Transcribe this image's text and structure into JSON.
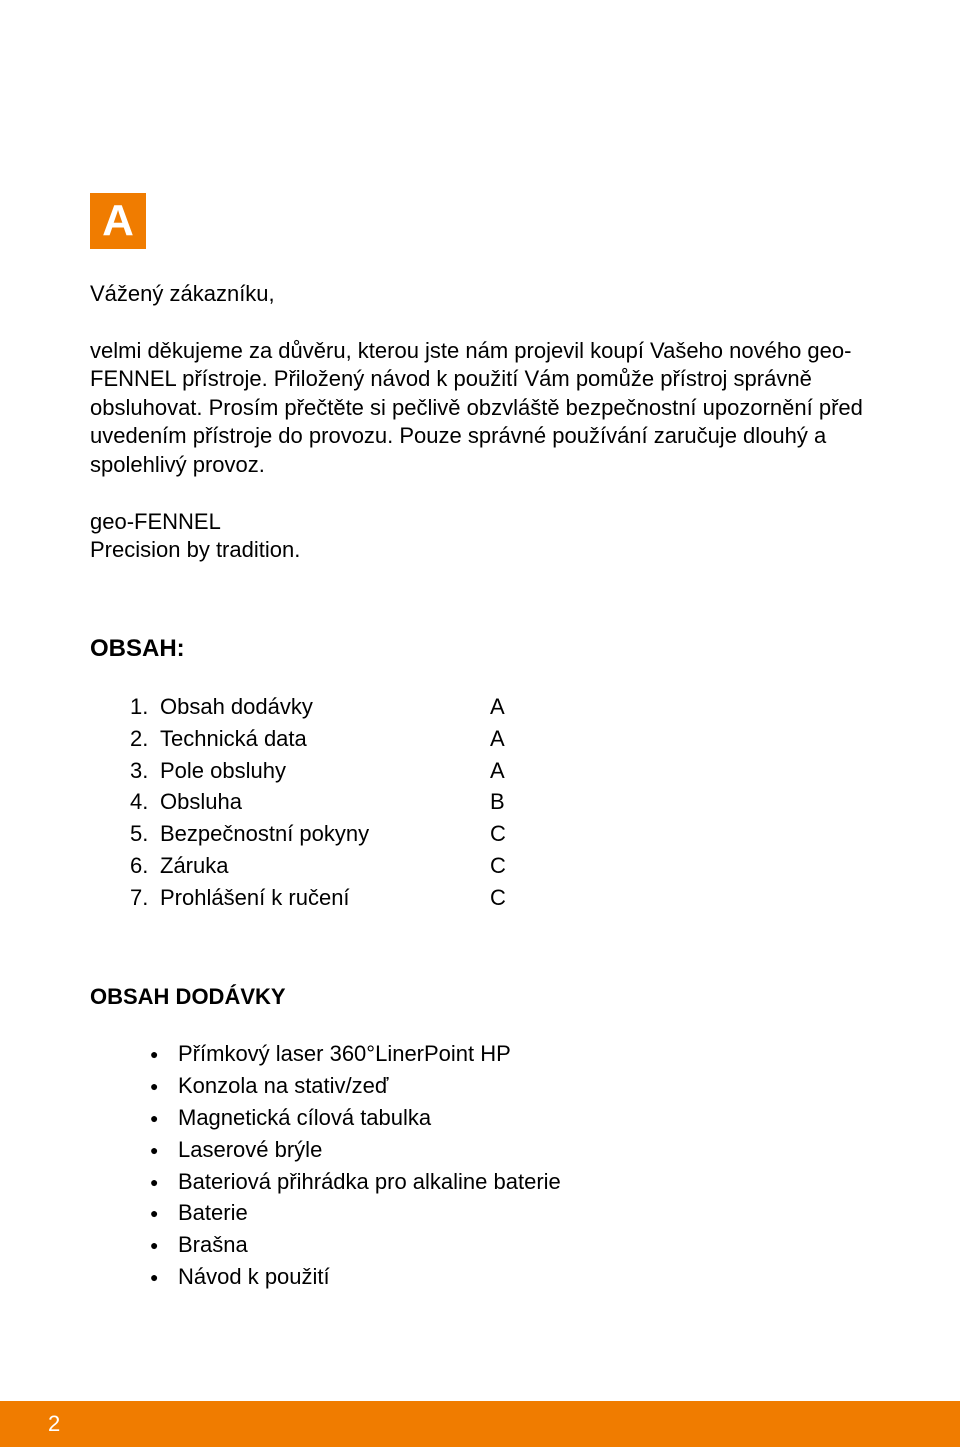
{
  "badge_letter": "A",
  "greeting": "Vážený zákazníku,",
  "intro": "velmi děkujeme za důvěru, kterou jste nám projevil koupí Vašeho nového geo-FENNEL přístroje. Přiložený návod k použití Vám pomůže přístroj správně obsluhovat. Prosím přečtěte si pečlivě obzvláště bezpečnostní upozornění před uvedením přístroje do provozu. Pouze správné používání zaručuje dlouhý a spolehlivý provoz.",
  "brand_line1": "geo-FENNEL",
  "brand_line2": "Precision by tradition.",
  "toc_heading": "OBSAH:",
  "toc": [
    {
      "num": "1.",
      "label": "Obsah dodávky",
      "key": "A"
    },
    {
      "num": "2.",
      "label": "Technická data",
      "key": "A"
    },
    {
      "num": "3.",
      "label": "Pole obsluhy",
      "key": "A"
    },
    {
      "num": "4.",
      "label": "Obsluha",
      "key": "B"
    },
    {
      "num": "5.",
      "label": "Bezpečnostní pokyny",
      "key": "C"
    },
    {
      "num": "6.",
      "label": "Záruka",
      "key": "C"
    },
    {
      "num": "7.",
      "label": "Prohlášení k ručení",
      "key": "C"
    }
  ],
  "delivery_heading": "OBSAH DODÁVKY",
  "delivery_items": [
    "Přímkový laser 360°LinerPoint HP",
    "Konzola na stativ/zeď",
    "Magnetická cílová tabulka",
    "Laserové brýle",
    "Bateriová přihrádka pro alkaline baterie",
    "Baterie",
    "Brašna",
    "Návod k použití"
  ],
  "page_number": "2",
  "colors": {
    "accent": "#f07c00",
    "text": "#000000",
    "background": "#ffffff"
  }
}
